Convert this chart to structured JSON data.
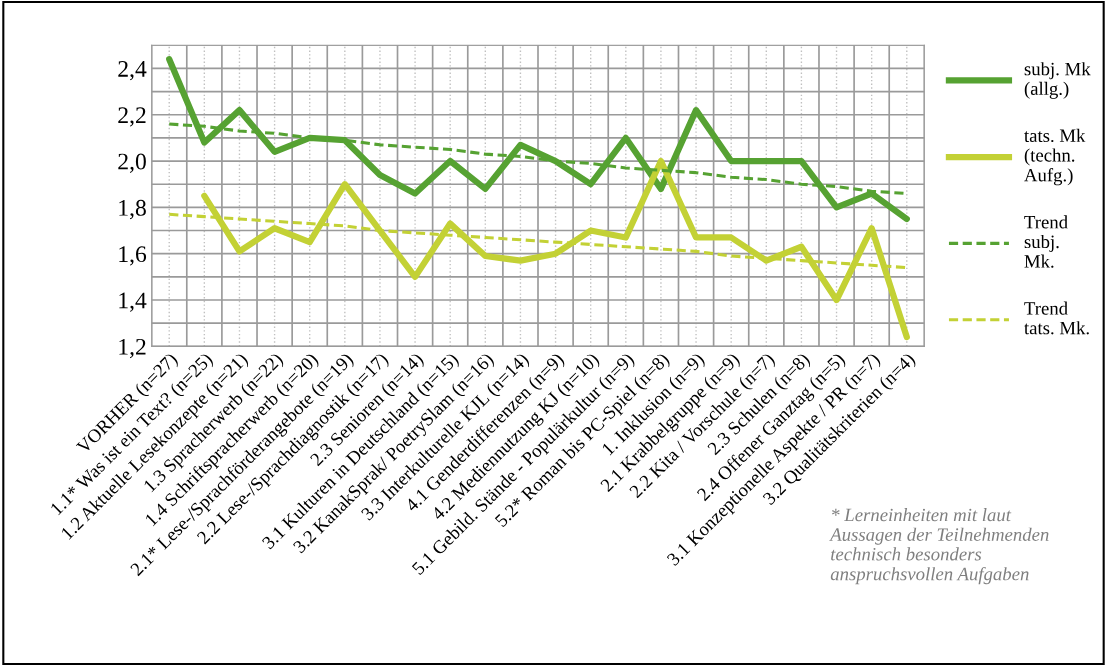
{
  "chart_data": {
    "type": "line",
    "categories": [
      "VORHER (n=27)",
      "1.1* Was ist ein Text? (n=25)",
      "1.2 Aktuelle Lesekonzepte (n=21)",
      "1.3 Spracherwerb (n=22)",
      "1.4 Schriftspracherwerb (n=20)",
      "2.1* Lese-/Sprachförderangebote (n=19)",
      "2.2 Lese-/Sprachdiagnostik (n=17)",
      "2.3 Senioren (n=14)",
      "3.1 Kulturen in Deutschland (n=15)",
      "3.2 KanakSprak/ PoetrySlam (n=16)",
      "3.3 Interkulturelle KJL (n=14)",
      "4.1 Genderdifferenzen (n=9)",
      "4.2 Mediennutzung KJ (n=10)",
      "5.1 Gebild. Stände - Populärkultur (n=9)",
      "5.2* Roman bis PC-Spiel (n=8)",
      "1. Inklusion (n=9)",
      "2.1 Krabbelgruppe (n=9)",
      "2.2 Kita / Vorschule (n=7)",
      "2.3 Schulen (n=8)",
      "2.4 Offener Ganztag (n=5)",
      "3.1 Konzeptionelle Aspekte / PR (n=7)",
      "3.2 Qualitätskriterien (n=4)"
    ],
    "series": [
      {
        "name": "subj. Mk\n(allg.)",
        "color": "#56a232",
        "line_style": "solid",
        "values": [
          2.44,
          2.08,
          2.22,
          2.04,
          2.1,
          2.09,
          1.94,
          1.86,
          2.0,
          1.88,
          2.07,
          2.0,
          1.9,
          2.1,
          1.88,
          2.22,
          2.0,
          2.0,
          2.0,
          1.8,
          1.86,
          1.75
        ]
      },
      {
        "name": "tats. Mk\n(techn.\nAufg.)",
        "color": "#c3d135",
        "line_style": "solid",
        "values": [
          null,
          1.85,
          1.61,
          1.71,
          1.65,
          1.9,
          1.7,
          1.5,
          1.73,
          1.59,
          1.57,
          1.6,
          1.7,
          1.67,
          2.0,
          1.67,
          1.67,
          1.57,
          1.63,
          1.4,
          1.71,
          1.24
        ]
      },
      {
        "name": "Trend\nsubj.\nMk.",
        "color": "#56a232",
        "line_style": "dashed",
        "values": [
          2.16,
          2.15,
          2.13,
          2.12,
          2.1,
          2.09,
          2.07,
          2.06,
          2.05,
          2.03,
          2.02,
          2.0,
          1.99,
          1.97,
          1.96,
          1.95,
          1.93,
          1.92,
          1.9,
          1.89,
          1.87,
          1.86
        ]
      },
      {
        "name": "Trend\ntats. Mk.",
        "color": "#c3d135",
        "line_style": "dashed",
        "values": [
          1.77,
          1.76,
          1.75,
          1.74,
          1.73,
          1.72,
          1.7,
          1.69,
          1.68,
          1.67,
          1.66,
          1.65,
          1.64,
          1.63,
          1.62,
          1.61,
          1.59,
          1.58,
          1.57,
          1.56,
          1.55,
          1.54
        ]
      }
    ],
    "ylim": [
      1.2,
      2.5
    ],
    "yticks": [
      {
        "value": 1.2,
        "label": "1,2"
      },
      {
        "value": 1.4,
        "label": "1,4"
      },
      {
        "value": 1.6,
        "label": "1,6"
      },
      {
        "value": 1.8,
        "label": "1,8"
      },
      {
        "value": 2.0,
        "label": "2,0"
      },
      {
        "value": 2.2,
        "label": "2,2"
      },
      {
        "value": 2.4,
        "label": "2,4"
      }
    ],
    "grid": true,
    "legend": "right",
    "marker": "none",
    "annotations": [
      "* Lerneinheiten mit laut\nAussagen der Teilnehmenden\ntechnisch besonders\nanspruchsvollen Aufgaben"
    ]
  }
}
